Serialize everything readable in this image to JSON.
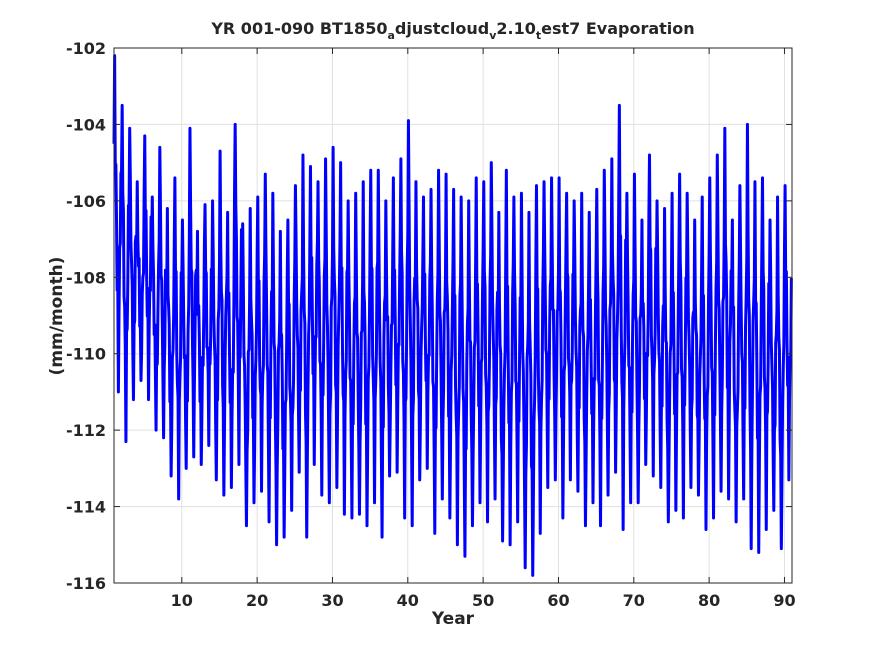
{
  "chart_data": {
    "type": "line",
    "title_parts": [
      {
        "text": "YR 001-090 BT1850",
        "sub": false
      },
      {
        "text": "a",
        "sub": true
      },
      {
        "text": "djustcloud",
        "sub": false
      },
      {
        "text": "v",
        "sub": true
      },
      {
        "text": "2.10",
        "sub": false
      },
      {
        "text": "t",
        "sub": true
      },
      {
        "text": "est7 Evaporation",
        "sub": false
      }
    ],
    "xlabel": "Year",
    "ylabel": "(mm/month)",
    "xlim": [
      1,
      91
    ],
    "ylim": [
      -116,
      -102
    ],
    "xticks": [
      10,
      20,
      30,
      40,
      50,
      60,
      70,
      80,
      90
    ],
    "yticks": [
      -102,
      -104,
      -106,
      -108,
      -110,
      -112,
      -114,
      -116
    ],
    "grid": true,
    "line_color": "#0000ff",
    "sampling": "monthly",
    "series": [
      {
        "seasonal_cycle_peaks": [
          -102.2,
          -103.5,
          -104.1,
          -105.5,
          -104.3,
          -105.9,
          -104.6,
          -106.2,
          -105.4,
          -106.5,
          -104.1,
          -106.8,
          -106.1,
          -106.0,
          -104.7,
          -106.3,
          -104.0,
          -106.6,
          -106.2,
          -105.9,
          -105.3,
          -105.8,
          -106.8,
          -106.5,
          -105.6,
          -104.8,
          -105.1,
          -105.5,
          -104.9,
          -104.6,
          -105.0,
          -106.0,
          -105.8,
          -105.5,
          -105.2,
          -105.2,
          -106.0,
          -105.4,
          -104.9,
          -103.9,
          -105.5,
          -105.9,
          -105.7,
          -105.2,
          -105.3,
          -105.7,
          -105.9,
          -106.0,
          -105.4,
          -105.5,
          -105.0,
          -106.3,
          -105.2,
          -105.9,
          -105.8,
          -106.3,
          -105.6,
          -105.5,
          -105.4,
          -105.4,
          -105.8,
          -106.0,
          -105.8,
          -106.3,
          -105.7,
          -105.2,
          -104.9,
          -103.5,
          -105.8,
          -105.3,
          -106.5,
          -104.8,
          -106.0,
          -106.2,
          -105.8,
          -105.3,
          -105.8,
          -106.5,
          -105.9,
          -105.4,
          -104.8,
          -104.1,
          -106.5,
          -105.6,
          -104.0,
          -105.5,
          -105.4,
          -106.5,
          -105.9,
          -105.6
        ],
        "seasonal_cycle_troughs": [
          -111.0,
          -112.3,
          -111.2,
          -110.7,
          -111.2,
          -112.0,
          -112.2,
          -113.2,
          -113.8,
          -113.0,
          -112.7,
          -112.9,
          -112.4,
          -113.3,
          -113.7,
          -113.5,
          -112.9,
          -114.5,
          -113.9,
          -113.6,
          -114.4,
          -115.0,
          -114.8,
          -114.1,
          -113.1,
          -114.8,
          -112.9,
          -113.7,
          -113.9,
          -113.5,
          -114.2,
          -114.3,
          -114.2,
          -114.5,
          -113.9,
          -114.8,
          -113.2,
          -113.1,
          -114.3,
          -114.5,
          -113.3,
          -113.0,
          -114.7,
          -113.8,
          -114.3,
          -115.0,
          -115.3,
          -114.5,
          -113.9,
          -114.4,
          -113.8,
          -114.9,
          -115.0,
          -114.4,
          -115.6,
          -115.8,
          -114.7,
          -113.5,
          -113.3,
          -114.3,
          -113.3,
          -113.6,
          -114.5,
          -113.9,
          -114.5,
          -113.7,
          -113.1,
          -114.6,
          -113.9,
          -113.9,
          -112.9,
          -113.2,
          -113.5,
          -114.4,
          -114.1,
          -114.3,
          -113.5,
          -113.7,
          -114.6,
          -114.3,
          -113.6,
          -113.8,
          -114.4,
          -113.8,
          -115.1,
          -115.2,
          -114.6,
          -114.1,
          -115.1,
          -113.3
        ]
      }
    ]
  }
}
